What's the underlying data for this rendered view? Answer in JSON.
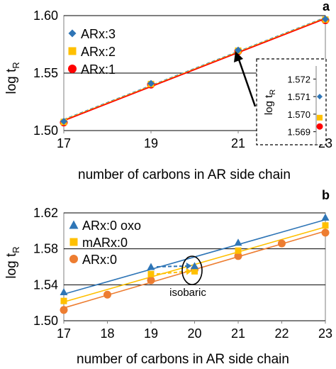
{
  "chart_data": [
    {
      "panel": "a",
      "type": "scatter",
      "xlabel": "number of carbons in AR side chain",
      "ylabel_main": "log t",
      "ylabel_sub": "R",
      "xlim": [
        17,
        23
      ],
      "ylim": [
        1.5,
        1.6
      ],
      "x_ticks": [
        17,
        19,
        21,
        23
      ],
      "y_ticks": [
        1.5,
        1.55,
        1.6
      ],
      "y_tick_labels": [
        "1.50",
        "1.55",
        "1.60"
      ],
      "grid": "horizontal",
      "legend_position": "top-left",
      "series": [
        {
          "name": "ARx:3",
          "marker": "diamond",
          "color": "#2e75b6",
          "line_style": "dashed",
          "x": [
            17,
            19,
            21,
            23
          ],
          "y": [
            1.508,
            1.541,
            1.57,
            1.597
          ]
        },
        {
          "name": "ARx:2",
          "marker": "square",
          "color": "#ffc000",
          "line_style": "solid",
          "x": [
            17,
            19,
            21,
            23
          ],
          "y": [
            1.5075,
            1.5405,
            1.5695,
            1.5965
          ]
        },
        {
          "name": "ARx:1",
          "marker": "circle",
          "color": "#ff0000",
          "line_style": "solid",
          "x": [
            17,
            19,
            21,
            23
          ],
          "y": [
            1.507,
            1.54,
            1.569,
            1.596
          ]
        }
      ],
      "inset": {
        "ylabel_main": "log t",
        "ylabel_sub": "R",
        "y_ticks": [
          1.572,
          1.571,
          1.57,
          1.569
        ],
        "y_tick_labels": [
          "1.572",
          "1.571",
          "1.570",
          "1.569"
        ],
        "ylim": [
          1.5685,
          1.5725
        ],
        "points": [
          {
            "series": "ARx:3",
            "y": 1.571
          },
          {
            "series": "ARx:2",
            "y": 1.5698
          },
          {
            "series": "ARx:1",
            "y": 1.5693
          }
        ]
      }
    },
    {
      "panel": "b",
      "type": "scatter",
      "xlabel": "number of carbons in AR side chain",
      "ylabel_main": "log t",
      "ylabel_sub": "R",
      "xlim": [
        17,
        23
      ],
      "ylim": [
        1.5,
        1.62
      ],
      "x_ticks": [
        17,
        18,
        19,
        20,
        21,
        22,
        23
      ],
      "y_ticks": [
        1.5,
        1.54,
        1.58,
        1.62
      ],
      "y_tick_labels": [
        "1.50",
        "1.54",
        "1.58",
        "1.62"
      ],
      "grid": "horizontal",
      "legend_position": "top-left",
      "annotation": "isobaric",
      "series": [
        {
          "name": "ARx:0 oxo",
          "marker": "triangle",
          "color": "#2e75b6",
          "x": [
            17,
            19,
            20,
            21,
            23
          ],
          "y": [
            1.532,
            1.56,
            1.561,
            1.587,
            1.615
          ]
        },
        {
          "name": "mARx:0",
          "marker": "square",
          "color": "#ffc000",
          "x": [
            17,
            19,
            20,
            21,
            23
          ],
          "y": [
            1.522,
            1.552,
            1.555,
            1.578,
            1.606
          ]
        },
        {
          "name": "ARx:0",
          "marker": "circle",
          "color": "#ed7d31",
          "x": [
            17,
            18,
            19,
            20,
            21,
            22,
            23
          ],
          "y": [
            1.512,
            1.529,
            1.545,
            1.557,
            1.572,
            1.586,
            1.598
          ]
        }
      ]
    }
  ]
}
